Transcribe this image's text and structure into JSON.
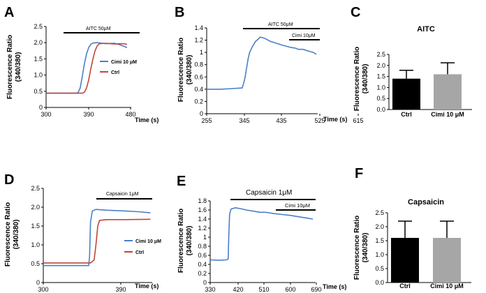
{
  "colors": {
    "blue": "#4a7fc8",
    "red": "#c0463a",
    "black": "#000000",
    "grey": "#a6a6a6"
  },
  "panels": {
    "A": {
      "letter": "A"
    },
    "B": {
      "letter": "B"
    },
    "C": {
      "letter": "C"
    },
    "D": {
      "letter": "D"
    },
    "E": {
      "letter": "E"
    },
    "F": {
      "letter": "F"
    }
  },
  "chart_data": [
    {
      "panel": "A",
      "type": "line",
      "ylabel": "Fluorescence Ratio\n(340/380)",
      "xlabel": "Time (s)",
      "xlim": [
        300,
        500
      ],
      "ylim": [
        0,
        2.5
      ],
      "xticks": [
        "300",
        "390",
        "480"
      ],
      "yticks": [
        "0",
        "0.5",
        "1.0",
        "1.5",
        "2.0",
        "2.5"
      ],
      "annotations": [
        {
          "text": "AITC 50μM",
          "x_start": 375,
          "x_end": 500
        }
      ],
      "legend": [
        "Cimi 10 μM",
        "Ctrl"
      ],
      "series": [
        {
          "name": "Cimi 10 μM",
          "color": "blue",
          "points": [
            [
              300,
              0.44
            ],
            [
              370,
              0.44
            ],
            [
              375,
              0.46
            ],
            [
              380,
              0.6
            ],
            [
              385,
              0.95
            ],
            [
              390,
              1.35
            ],
            [
              395,
              1.65
            ],
            [
              400,
              1.85
            ],
            [
              405,
              1.95
            ],
            [
              410,
              1.99
            ],
            [
              420,
              2.0
            ],
            [
              440,
              1.97
            ],
            [
              460,
              1.98
            ],
            [
              470,
              1.95
            ],
            [
              480,
              1.9
            ],
            [
              490,
              1.85
            ]
          ]
        },
        {
          "name": "Ctrl",
          "color": "red",
          "points": [
            [
              300,
              0.44
            ],
            [
              385,
              0.44
            ],
            [
              390,
              0.47
            ],
            [
              395,
              0.6
            ],
            [
              400,
              0.85
            ],
            [
              405,
              1.2
            ],
            [
              410,
              1.5
            ],
            [
              415,
              1.75
            ],
            [
              420,
              1.9
            ],
            [
              425,
              1.97
            ],
            [
              440,
              1.98
            ],
            [
              460,
              1.96
            ],
            [
              480,
              1.97
            ],
            [
              490,
              1.95
            ]
          ]
        }
      ]
    },
    {
      "panel": "B",
      "type": "line",
      "ylabel": "Fluorescence Ratio\n(340/380)",
      "xlabel": "Time (s)",
      "xlim": [
        255,
        630
      ],
      "ylim": [
        0,
        1.4
      ],
      "xticks": [
        "255",
        "345",
        "435",
        "525",
        "615"
      ],
      "yticks": [
        "0",
        "0.2",
        "0.4",
        "0.6",
        "0.8",
        "1",
        "1.2",
        "1.4"
      ],
      "annotations": [
        {
          "text": "AITC 50μM",
          "x_start": 375,
          "x_end": 630
        },
        {
          "text": "Cimi 10μM",
          "x_start": 555,
          "x_end": 630
        }
      ],
      "series": [
        {
          "name": "",
          "color": "blue",
          "points": [
            [
              255,
              0.4
            ],
            [
              300,
              0.4
            ],
            [
              340,
              0.41
            ],
            [
              375,
              0.42
            ],
            [
              380,
              0.5
            ],
            [
              385,
              0.6
            ],
            [
              390,
              0.75
            ],
            [
              395,
              0.9
            ],
            [
              400,
              1.0
            ],
            [
              405,
              1.05
            ],
            [
              410,
              1.1
            ],
            [
              420,
              1.18
            ],
            [
              430,
              1.22
            ],
            [
              435,
              1.25
            ],
            [
              445,
              1.24
            ],
            [
              455,
              1.22
            ],
            [
              470,
              1.18
            ],
            [
              490,
              1.15
            ],
            [
              510,
              1.12
            ],
            [
              525,
              1.1
            ],
            [
              540,
              1.08
            ],
            [
              555,
              1.07
            ],
            [
              565,
              1.05
            ],
            [
              580,
              1.05
            ],
            [
              600,
              1.02
            ],
            [
              615,
              1.0
            ],
            [
              625,
              0.97
            ]
          ]
        }
      ]
    },
    {
      "panel": "C",
      "type": "bar",
      "title": "AITC",
      "ylabel": "Fluorescence Ratio\n(340/380)",
      "ylim": [
        0,
        2.5
      ],
      "yticks": [
        "0.0",
        "0.5",
        "1.0",
        "1.5",
        "2.0",
        "2.5"
      ],
      "categories": [
        "Ctrl",
        "Cimi 10 μM"
      ],
      "values": [
        1.4,
        1.6
      ],
      "errors": [
        0.38,
        0.52
      ],
      "colors": [
        "black",
        "grey"
      ]
    },
    {
      "panel": "D",
      "type": "line",
      "ylabel": "Fluorescence Ratio\n(340/380)",
      "xlabel": "Time (s)",
      "xlim": [
        300,
        420
      ],
      "ylim": [
        0,
        2.5
      ],
      "xticks": [
        "300",
        "390"
      ],
      "yticks": [
        "0",
        "0.5",
        "1.0",
        "1.5",
        "2.0",
        "2.5"
      ],
      "annotations": [
        {
          "text": "Capsaicin 1μM",
          "x_start": 350,
          "x_end": 420
        }
      ],
      "legend": [
        "Cimi 10 μM",
        "Ctrl"
      ],
      "series": [
        {
          "name": "Cimi 10 μM",
          "color": "blue",
          "points": [
            [
              300,
              0.45
            ],
            [
              350,
              0.45
            ],
            [
              351,
              0.7
            ],
            [
              352,
              1.6
            ],
            [
              354,
              1.9
            ],
            [
              358,
              1.94
            ],
            [
              370,
              1.92
            ],
            [
              390,
              1.9
            ],
            [
              405,
              1.88
            ],
            [
              418,
              1.85
            ]
          ]
        },
        {
          "name": "Ctrl",
          "color": "red",
          "points": [
            [
              300,
              0.52
            ],
            [
              352,
              0.52
            ],
            [
              356,
              0.6
            ],
            [
              358,
              1.0
            ],
            [
              360,
              1.5
            ],
            [
              362,
              1.65
            ],
            [
              370,
              1.67
            ],
            [
              390,
              1.67
            ],
            [
              418,
              1.68
            ]
          ]
        }
      ]
    },
    {
      "panel": "E",
      "type": "line",
      "ylabel": "Fluorescence Ratio\n(340/380)",
      "xlabel": "Time (s)",
      "xlim": [
        330,
        710
      ],
      "ylim": [
        0,
        1.8
      ],
      "xticks": [
        "330",
        "420",
        "510",
        "600",
        "690"
      ],
      "yticks": [
        "0",
        "0.2",
        "0.4",
        "0.6",
        "0.8",
        "1",
        "1.2",
        "1.4",
        "1.6",
        "1.8"
      ],
      "annotations": [
        {
          "text": "Capsaicin 1μM",
          "x_start": 395,
          "x_end": 710
        },
        {
          "text": "Cimi 10μM",
          "x_start": 570,
          "x_end": 710
        }
      ],
      "series": [
        {
          "name": "",
          "color": "blue",
          "points": [
            [
              330,
              0.5
            ],
            [
              360,
              0.49
            ],
            [
              390,
              0.5
            ],
            [
              395,
              0.52
            ],
            [
              397,
              1.0
            ],
            [
              400,
              1.5
            ],
            [
              405,
              1.62
            ],
            [
              420,
              1.65
            ],
            [
              440,
              1.63
            ],
            [
              460,
              1.6
            ],
            [
              490,
              1.57
            ],
            [
              510,
              1.55
            ],
            [
              530,
              1.55
            ],
            [
              560,
              1.52
            ],
            [
              590,
              1.5
            ],
            [
              620,
              1.48
            ],
            [
              650,
              1.45
            ],
            [
              680,
              1.42
            ],
            [
              700,
              1.4
            ]
          ]
        }
      ]
    },
    {
      "panel": "F",
      "type": "bar",
      "title": "Capsaicin",
      "ylabel": "Fluorescence Ratio\n(340/380)",
      "ylim": [
        0,
        2.5
      ],
      "yticks": [
        "0.0",
        "0.5",
        "1.0",
        "1.5",
        "2.0",
        "2.5"
      ],
      "categories": [
        "Ctrl",
        "Cimi 10 μM"
      ],
      "values": [
        1.6,
        1.6
      ],
      "errors": [
        0.6,
        0.6
      ],
      "colors": [
        "black",
        "grey"
      ]
    }
  ]
}
